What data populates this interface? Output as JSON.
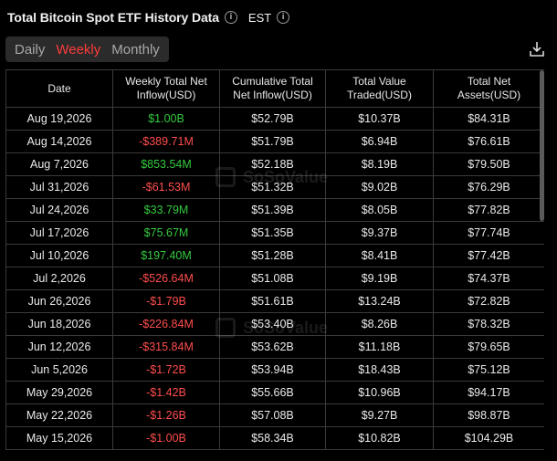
{
  "header": {
    "title": "Total Bitcoin Spot ETF History Data",
    "timezone": "EST"
  },
  "tabs": [
    {
      "label": "Daily",
      "active": false
    },
    {
      "label": "Weekly",
      "active": true
    },
    {
      "label": "Monthly",
      "active": false
    }
  ],
  "table": {
    "columns": [
      "Date",
      "Weekly Total Net Inflow(USD)",
      "Cumulative Total Net Inflow(USD)",
      "Total Value Traded(USD)",
      "Total Net Assets(USD)"
    ],
    "rows": [
      {
        "date": "Aug 19,2026",
        "inflow": "$1.00B",
        "sign": "pos",
        "cumulative": "$52.79B",
        "traded": "$10.37B",
        "assets": "$84.31B"
      },
      {
        "date": "Aug 14,2026",
        "inflow": "-$389.71M",
        "sign": "neg",
        "cumulative": "$51.79B",
        "traded": "$6.94B",
        "assets": "$76.61B"
      },
      {
        "date": "Aug 7,2026",
        "inflow": "$853.54M",
        "sign": "pos",
        "cumulative": "$52.18B",
        "traded": "$8.19B",
        "assets": "$79.50B"
      },
      {
        "date": "Jul 31,2026",
        "inflow": "-$61.53M",
        "sign": "neg",
        "cumulative": "$51.32B",
        "traded": "$9.02B",
        "assets": "$76.29B"
      },
      {
        "date": "Jul 24,2026",
        "inflow": "$33.79M",
        "sign": "pos",
        "cumulative": "$51.39B",
        "traded": "$8.05B",
        "assets": "$77.82B"
      },
      {
        "date": "Jul 17,2026",
        "inflow": "$75.67M",
        "sign": "pos",
        "cumulative": "$51.35B",
        "traded": "$9.37B",
        "assets": "$77.74B"
      },
      {
        "date": "Jul 10,2026",
        "inflow": "$197.40M",
        "sign": "pos",
        "cumulative": "$51.28B",
        "traded": "$8.41B",
        "assets": "$77.42B"
      },
      {
        "date": "Jul 2,2026",
        "inflow": "-$526.64M",
        "sign": "neg",
        "cumulative": "$51.08B",
        "traded": "$9.19B",
        "assets": "$74.37B"
      },
      {
        "date": "Jun 26,2026",
        "inflow": "-$1.79B",
        "sign": "neg",
        "cumulative": "$51.61B",
        "traded": "$13.24B",
        "assets": "$72.82B"
      },
      {
        "date": "Jun 18,2026",
        "inflow": "-$226.84M",
        "sign": "neg",
        "cumulative": "$53.40B",
        "traded": "$8.26B",
        "assets": "$78.32B"
      },
      {
        "date": "Jun 12,2026",
        "inflow": "-$315.84M",
        "sign": "neg",
        "cumulative": "$53.62B",
        "traded": "$11.18B",
        "assets": "$79.65B"
      },
      {
        "date": "Jun 5,2026",
        "inflow": "-$1.72B",
        "sign": "neg",
        "cumulative": "$53.94B",
        "traded": "$18.43B",
        "assets": "$75.12B"
      },
      {
        "date": "May 29,2026",
        "inflow": "-$1.42B",
        "sign": "neg",
        "cumulative": "$55.66B",
        "traded": "$10.96B",
        "assets": "$94.17B"
      },
      {
        "date": "May 22,2026",
        "inflow": "-$1.26B",
        "sign": "neg",
        "cumulative": "$57.08B",
        "traded": "$9.27B",
        "assets": "$98.87B"
      },
      {
        "date": "May 15,2026",
        "inflow": "-$1.00B",
        "sign": "neg",
        "cumulative": "$58.34B",
        "traded": "$10.82B",
        "assets": "$104.29B"
      }
    ]
  },
  "icons": {
    "info": "info-circle-icon",
    "download": "download-icon"
  },
  "watermark": "SoSoValue",
  "colors": {
    "background": "#000000",
    "positive": "#35c93f",
    "negative": "#ff4d4d",
    "active_tab": "#ff3b3b",
    "tab_bar": "#2b2b2b",
    "grid": "#3a3a3a"
  }
}
